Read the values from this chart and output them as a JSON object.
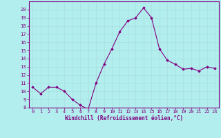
{
  "x": [
    0,
    1,
    2,
    3,
    4,
    5,
    6,
    7,
    8,
    9,
    10,
    11,
    12,
    13,
    14,
    15,
    16,
    17,
    18,
    19,
    20,
    21,
    22,
    23
  ],
  "y": [
    10.5,
    9.7,
    10.5,
    10.5,
    10.0,
    9.0,
    8.3,
    7.8,
    11.0,
    13.3,
    15.2,
    17.3,
    18.6,
    19.0,
    20.2,
    19.0,
    15.2,
    13.8,
    13.3,
    12.7,
    12.8,
    12.5,
    13.0,
    12.8
  ],
  "line_color": "#800080",
  "marker": "D",
  "marker_size": 1.8,
  "bg_color": "#b2eeee",
  "grid_color": "#aadddd",
  "xlabel": "Windchill (Refroidissement éolien,°C)",
  "xlabel_color": "#800080",
  "tick_color": "#800080",
  "ylim": [
    8,
    21
  ],
  "xlim": [
    -0.5,
    23.5
  ],
  "yticks": [
    8,
    9,
    10,
    11,
    12,
    13,
    14,
    15,
    16,
    17,
    18,
    19,
    20
  ],
  "xticks": [
    0,
    1,
    2,
    3,
    4,
    5,
    6,
    7,
    8,
    9,
    10,
    11,
    12,
    13,
    14,
    15,
    16,
    17,
    18,
    19,
    20,
    21,
    22,
    23
  ]
}
